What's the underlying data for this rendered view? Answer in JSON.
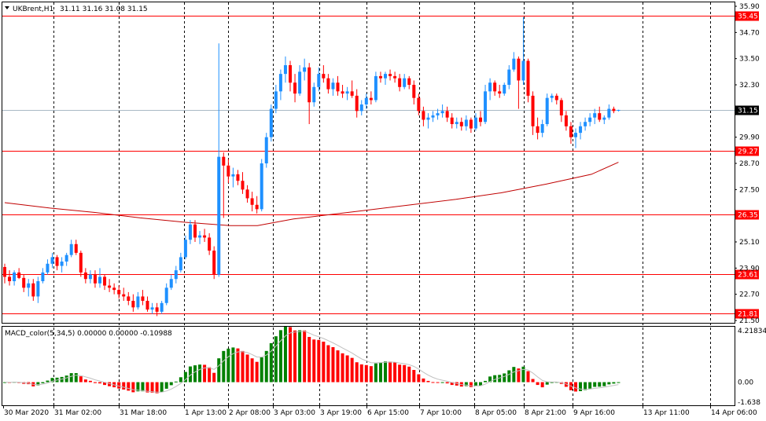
{
  "header": {
    "symbol_label": "UKBrent,H1",
    "ohlc_label": "31.11 31.16 31.08 31.15"
  },
  "indicator": {
    "label": "MACD_color(5,34,5) 0.00000 0.00000 -0.10988",
    "scale_labels": [
      "4.21834",
      "0.00",
      "-1.638"
    ],
    "scale_values": [
      4.21834,
      0,
      -1.638
    ]
  },
  "colors": {
    "bull": "#1e90ff",
    "bear": "#ff0000",
    "macd_up": "#008000",
    "macd_down": "#ff0000",
    "level_line": "#ff0000",
    "ma_line": "#c00000",
    "bid_line": "#a9b8c4",
    "signal_line": "#c0c0c0"
  },
  "price_axis": {
    "labels": [
      "35.90",
      "34.70",
      "33.50",
      "32.30",
      "29.90",
      "28.70",
      "27.50",
      "25.10",
      "23.90",
      "22.70",
      "21.50"
    ],
    "values": [
      35.9,
      34.7,
      33.5,
      32.3,
      29.9,
      28.7,
      27.5,
      25.1,
      23.9,
      22.7,
      21.5
    ]
  },
  "time_axis": {
    "labels": [
      "30 Mar 2020",
      "31 Mar 02:00",
      "31 Mar 18:00",
      "1 Apr 13:00",
      "2 Apr 08:00",
      "3 Apr 03:00",
      "3 Apr 19:00",
      "6 Apr 15:00",
      "7 Apr 10:00",
      "8 Apr 05:00",
      "8 Apr 21:00",
      "9 Apr 16:00",
      "13 Apr 11:00",
      "14 Apr 06:00"
    ]
  },
  "levels": [
    {
      "label": "35.45",
      "value": 35.45
    },
    {
      "label": "29.27",
      "value": 29.27
    },
    {
      "label": "26.35",
      "value": 26.35
    },
    {
      "label": "23.61",
      "value": 23.61
    },
    {
      "label": "21.81",
      "value": 21.81
    }
  ],
  "current_price": {
    "label": "31.15",
    "value": 31.15
  },
  "chart_data": {
    "type": "candlestick",
    "symbol": "UKBrent",
    "timeframe": "H1",
    "y_range": [
      21.5,
      35.9
    ],
    "candles": [
      {
        "o": 23.95,
        "h": 24.1,
        "l": 23.2,
        "c": 23.5
      },
      {
        "o": 23.5,
        "h": 23.8,
        "l": 23.1,
        "c": 23.3
      },
      {
        "o": 23.3,
        "h": 23.8,
        "l": 23.1,
        "c": 23.7
      },
      {
        "o": 23.7,
        "h": 23.9,
        "l": 23.4,
        "c": 23.45
      },
      {
        "o": 23.45,
        "h": 23.6,
        "l": 22.8,
        "c": 23.0
      },
      {
        "o": 23.0,
        "h": 23.4,
        "l": 22.6,
        "c": 23.2
      },
      {
        "o": 23.2,
        "h": 23.4,
        "l": 22.4,
        "c": 22.6
      },
      {
        "o": 22.6,
        "h": 23.5,
        "l": 22.3,
        "c": 23.3
      },
      {
        "o": 23.3,
        "h": 23.9,
        "l": 23.2,
        "c": 23.7
      },
      {
        "o": 23.7,
        "h": 24.3,
        "l": 23.6,
        "c": 24.1
      },
      {
        "o": 24.1,
        "h": 24.6,
        "l": 23.9,
        "c": 24.4
      },
      {
        "o": 24.4,
        "h": 24.5,
        "l": 23.8,
        "c": 24.0
      },
      {
        "o": 24.0,
        "h": 24.4,
        "l": 23.7,
        "c": 24.2
      },
      {
        "o": 24.2,
        "h": 24.6,
        "l": 24.0,
        "c": 24.5
      },
      {
        "o": 24.5,
        "h": 25.2,
        "l": 24.4,
        "c": 25.0
      },
      {
        "o": 25.0,
        "h": 25.2,
        "l": 24.5,
        "c": 24.6
      },
      {
        "o": 24.6,
        "h": 24.7,
        "l": 23.5,
        "c": 23.7
      },
      {
        "o": 23.7,
        "h": 23.9,
        "l": 23.2,
        "c": 23.4
      },
      {
        "o": 23.4,
        "h": 23.8,
        "l": 23.2,
        "c": 23.6
      },
      {
        "o": 23.6,
        "h": 23.8,
        "l": 23.0,
        "c": 23.2
      },
      {
        "o": 23.2,
        "h": 23.9,
        "l": 23.0,
        "c": 23.5
      },
      {
        "o": 23.5,
        "h": 23.6,
        "l": 22.9,
        "c": 23.1
      },
      {
        "o": 23.1,
        "h": 23.4,
        "l": 22.8,
        "c": 23.0
      },
      {
        "o": 23.0,
        "h": 23.2,
        "l": 22.7,
        "c": 22.9
      },
      {
        "o": 22.9,
        "h": 23.1,
        "l": 22.5,
        "c": 22.7
      },
      {
        "o": 22.7,
        "h": 23.0,
        "l": 22.4,
        "c": 22.6
      },
      {
        "o": 22.6,
        "h": 22.8,
        "l": 22.2,
        "c": 22.4
      },
      {
        "o": 22.4,
        "h": 22.7,
        "l": 21.9,
        "c": 22.1
      },
      {
        "o": 22.1,
        "h": 22.8,
        "l": 22.0,
        "c": 22.6
      },
      {
        "o": 22.6,
        "h": 22.9,
        "l": 22.2,
        "c": 22.4
      },
      {
        "o": 22.4,
        "h": 22.6,
        "l": 21.9,
        "c": 22.0
      },
      {
        "o": 22.0,
        "h": 22.3,
        "l": 21.8,
        "c": 22.1
      },
      {
        "o": 22.1,
        "h": 22.3,
        "l": 21.7,
        "c": 21.9
      },
      {
        "o": 21.9,
        "h": 22.4,
        "l": 21.8,
        "c": 22.3
      },
      {
        "o": 22.3,
        "h": 23.2,
        "l": 22.2,
        "c": 23.0
      },
      {
        "o": 23.0,
        "h": 23.6,
        "l": 22.9,
        "c": 23.4
      },
      {
        "o": 23.4,
        "h": 24.0,
        "l": 23.2,
        "c": 23.8
      },
      {
        "o": 23.8,
        "h": 24.6,
        "l": 23.7,
        "c": 24.4
      },
      {
        "o": 24.4,
        "h": 25.4,
        "l": 24.3,
        "c": 25.2
      },
      {
        "o": 25.2,
        "h": 26.1,
        "l": 25.0,
        "c": 25.9
      },
      {
        "o": 25.9,
        "h": 26.1,
        "l": 25.1,
        "c": 25.3
      },
      {
        "o": 25.3,
        "h": 25.6,
        "l": 25.0,
        "c": 25.4
      },
      {
        "o": 25.4,
        "h": 25.7,
        "l": 25.1,
        "c": 25.3
      },
      {
        "o": 25.3,
        "h": 25.5,
        "l": 24.5,
        "c": 24.7
      },
      {
        "o": 24.7,
        "h": 24.9,
        "l": 23.4,
        "c": 23.6
      },
      {
        "o": 23.6,
        "h": 34.2,
        "l": 23.5,
        "c": 29.0
      },
      {
        "o": 29.0,
        "h": 29.2,
        "l": 26.2,
        "c": 28.6
      },
      {
        "o": 28.6,
        "h": 28.9,
        "l": 27.8,
        "c": 28.1
      },
      {
        "o": 28.1,
        "h": 28.5,
        "l": 27.6,
        "c": 28.2
      },
      {
        "o": 28.2,
        "h": 28.4,
        "l": 27.7,
        "c": 27.9
      },
      {
        "o": 27.9,
        "h": 28.3,
        "l": 27.3,
        "c": 27.5
      },
      {
        "o": 27.5,
        "h": 27.7,
        "l": 26.9,
        "c": 27.1
      },
      {
        "o": 27.1,
        "h": 27.4,
        "l": 26.5,
        "c": 26.8
      },
      {
        "o": 26.8,
        "h": 27.2,
        "l": 26.4,
        "c": 26.6
      },
      {
        "o": 26.6,
        "h": 28.9,
        "l": 26.5,
        "c": 28.7
      },
      {
        "o": 28.7,
        "h": 30.1,
        "l": 28.5,
        "c": 29.9
      },
      {
        "o": 29.9,
        "h": 31.4,
        "l": 29.7,
        "c": 31.2
      },
      {
        "o": 31.2,
        "h": 32.3,
        "l": 31.0,
        "c": 32.0
      },
      {
        "o": 32.0,
        "h": 33.0,
        "l": 31.6,
        "c": 32.8
      },
      {
        "o": 32.8,
        "h": 33.6,
        "l": 32.4,
        "c": 33.2
      },
      {
        "o": 33.2,
        "h": 33.4,
        "l": 32.0,
        "c": 32.4
      },
      {
        "o": 32.4,
        "h": 32.8,
        "l": 31.5,
        "c": 31.9
      },
      {
        "o": 31.9,
        "h": 33.2,
        "l": 31.8,
        "c": 32.9
      },
      {
        "o": 32.9,
        "h": 33.5,
        "l": 32.5,
        "c": 33.1
      },
      {
        "o": 33.1,
        "h": 33.3,
        "l": 30.5,
        "c": 31.5
      },
      {
        "o": 31.5,
        "h": 32.4,
        "l": 31.3,
        "c": 32.2
      },
      {
        "o": 32.2,
        "h": 33.1,
        "l": 32.0,
        "c": 32.8
      },
      {
        "o": 32.8,
        "h": 33.2,
        "l": 32.4,
        "c": 32.6
      },
      {
        "o": 32.6,
        "h": 32.8,
        "l": 31.9,
        "c": 32.1
      },
      {
        "o": 32.1,
        "h": 32.6,
        "l": 31.8,
        "c": 32.4
      },
      {
        "o": 32.4,
        "h": 32.7,
        "l": 31.8,
        "c": 32.0
      },
      {
        "o": 32.0,
        "h": 32.3,
        "l": 31.7,
        "c": 31.9
      },
      {
        "o": 31.9,
        "h": 32.2,
        "l": 31.6,
        "c": 32.0
      },
      {
        "o": 32.0,
        "h": 32.5,
        "l": 31.7,
        "c": 31.8
      },
      {
        "o": 31.8,
        "h": 32.1,
        "l": 30.8,
        "c": 31.1
      },
      {
        "o": 31.1,
        "h": 31.6,
        "l": 30.9,
        "c": 31.4
      },
      {
        "o": 31.4,
        "h": 31.9,
        "l": 31.2,
        "c": 31.7
      },
      {
        "o": 31.7,
        "h": 32.0,
        "l": 31.4,
        "c": 31.6
      },
      {
        "o": 31.6,
        "h": 32.9,
        "l": 31.5,
        "c": 32.7
      },
      {
        "o": 32.7,
        "h": 32.9,
        "l": 32.4,
        "c": 32.6
      },
      {
        "o": 32.6,
        "h": 32.9,
        "l": 32.3,
        "c": 32.8
      },
      {
        "o": 32.8,
        "h": 33.0,
        "l": 32.5,
        "c": 32.7
      },
      {
        "o": 32.7,
        "h": 32.9,
        "l": 32.4,
        "c": 32.6
      },
      {
        "o": 32.6,
        "h": 32.8,
        "l": 32.0,
        "c": 32.2
      },
      {
        "o": 32.2,
        "h": 32.8,
        "l": 32.1,
        "c": 32.6
      },
      {
        "o": 32.6,
        "h": 32.7,
        "l": 32.1,
        "c": 32.3
      },
      {
        "o": 32.3,
        "h": 32.5,
        "l": 31.4,
        "c": 31.7
      },
      {
        "o": 31.7,
        "h": 31.9,
        "l": 30.9,
        "c": 31.1
      },
      {
        "o": 31.1,
        "h": 31.3,
        "l": 30.4,
        "c": 30.7
      },
      {
        "o": 30.7,
        "h": 31.0,
        "l": 30.3,
        "c": 30.8
      },
      {
        "o": 30.8,
        "h": 31.1,
        "l": 30.6,
        "c": 30.9
      },
      {
        "o": 30.9,
        "h": 31.2,
        "l": 30.7,
        "c": 31.0
      },
      {
        "o": 31.0,
        "h": 31.4,
        "l": 30.8,
        "c": 31.1
      },
      {
        "o": 31.1,
        "h": 31.3,
        "l": 30.6,
        "c": 30.8
      },
      {
        "o": 30.8,
        "h": 31.0,
        "l": 30.3,
        "c": 30.5
      },
      {
        "o": 30.5,
        "h": 30.8,
        "l": 30.3,
        "c": 30.6
      },
      {
        "o": 30.6,
        "h": 30.8,
        "l": 30.2,
        "c": 30.4
      },
      {
        "o": 30.4,
        "h": 30.9,
        "l": 30.2,
        "c": 30.7
      },
      {
        "o": 30.7,
        "h": 30.8,
        "l": 30.1,
        "c": 30.3
      },
      {
        "o": 30.3,
        "h": 31.0,
        "l": 30.2,
        "c": 30.8
      },
      {
        "o": 30.8,
        "h": 31.1,
        "l": 30.4,
        "c": 30.6
      },
      {
        "o": 30.6,
        "h": 32.3,
        "l": 30.5,
        "c": 32.0
      },
      {
        "o": 32.0,
        "h": 32.6,
        "l": 31.6,
        "c": 32.4
      },
      {
        "o": 32.4,
        "h": 32.5,
        "l": 31.8,
        "c": 32.0
      },
      {
        "o": 32.0,
        "h": 32.3,
        "l": 31.7,
        "c": 31.9
      },
      {
        "o": 31.9,
        "h": 32.4,
        "l": 31.8,
        "c": 32.3
      },
      {
        "o": 32.3,
        "h": 33.2,
        "l": 32.1,
        "c": 33.0
      },
      {
        "o": 33.0,
        "h": 33.8,
        "l": 32.9,
        "c": 33.5
      },
      {
        "o": 33.5,
        "h": 33.6,
        "l": 31.2,
        "c": 32.5
      },
      {
        "o": 32.5,
        "h": 35.4,
        "l": 32.3,
        "c": 33.4
      },
      {
        "o": 33.4,
        "h": 33.5,
        "l": 31.5,
        "c": 31.8
      },
      {
        "o": 31.8,
        "h": 32.0,
        "l": 30.0,
        "c": 30.4
      },
      {
        "o": 30.4,
        "h": 30.8,
        "l": 29.8,
        "c": 30.1
      },
      {
        "o": 30.1,
        "h": 30.7,
        "l": 29.9,
        "c": 30.5
      },
      {
        "o": 30.5,
        "h": 31.9,
        "l": 30.4,
        "c": 31.7
      },
      {
        "o": 31.7,
        "h": 31.9,
        "l": 31.5,
        "c": 31.8
      },
      {
        "o": 31.8,
        "h": 31.9,
        "l": 31.4,
        "c": 31.6
      },
      {
        "o": 31.6,
        "h": 31.7,
        "l": 30.6,
        "c": 30.9
      },
      {
        "o": 30.9,
        "h": 31.1,
        "l": 30.2,
        "c": 30.4
      },
      {
        "o": 30.4,
        "h": 30.6,
        "l": 29.6,
        "c": 29.9
      },
      {
        "o": 29.9,
        "h": 30.3,
        "l": 29.4,
        "c": 30.1
      },
      {
        "o": 30.1,
        "h": 30.6,
        "l": 29.8,
        "c": 30.4
      },
      {
        "o": 30.4,
        "h": 30.8,
        "l": 30.2,
        "c": 30.6
      },
      {
        "o": 30.6,
        "h": 31.0,
        "l": 30.4,
        "c": 30.8
      },
      {
        "o": 30.8,
        "h": 31.2,
        "l": 30.5,
        "c": 31.0
      },
      {
        "o": 31.0,
        "h": 31.3,
        "l": 30.6,
        "c": 30.7
      },
      {
        "o": 30.7,
        "h": 30.9,
        "l": 30.5,
        "c": 30.8
      },
      {
        "o": 30.8,
        "h": 31.4,
        "l": 30.7,
        "c": 31.2
      },
      {
        "o": 31.2,
        "h": 31.3,
        "l": 31.0,
        "c": 31.1
      },
      {
        "o": 31.11,
        "h": 31.16,
        "l": 31.08,
        "c": 31.15
      }
    ],
    "moving_average": [
      {
        "i": 0,
        "v": 26.9
      },
      {
        "i": 10,
        "v": 26.65
      },
      {
        "i": 20,
        "v": 26.45
      },
      {
        "i": 30,
        "v": 26.2
      },
      {
        "i": 40,
        "v": 26.0
      },
      {
        "i": 50,
        "v": 25.85
      },
      {
        "i": 56,
        "v": 25.85
      },
      {
        "i": 64,
        "v": 26.15
      },
      {
        "i": 72,
        "v": 26.35
      },
      {
        "i": 80,
        "v": 26.55
      },
      {
        "i": 90,
        "v": 26.8
      },
      {
        "i": 100,
        "v": 27.05
      },
      {
        "i": 110,
        "v": 27.35
      },
      {
        "i": 120,
        "v": 27.75
      },
      {
        "i": 130,
        "v": 28.2
      },
      {
        "i": 136,
        "v": 28.75
      }
    ]
  }
}
